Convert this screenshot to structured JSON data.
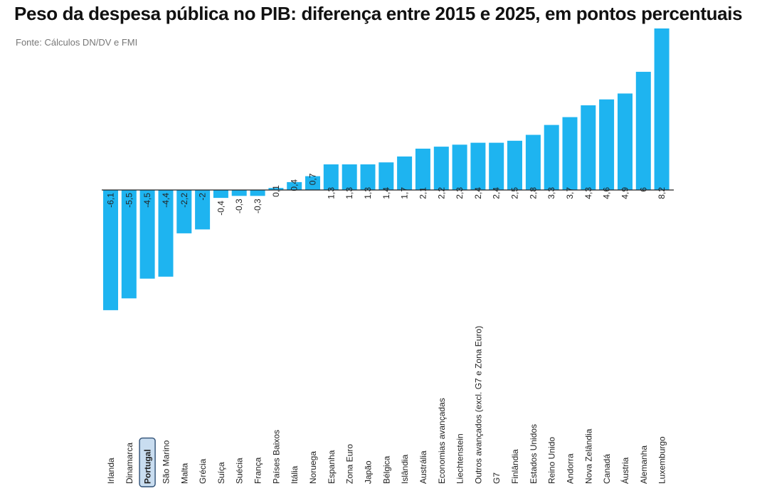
{
  "header": {
    "title": "Peso da despesa pública no PIB: diferença entre 2015 e 2025, em pontos percentuais",
    "source": "Fonte: Cálculos DN/DV e FMI"
  },
  "colors": {
    "bar": "#1EB4F0",
    "highlight_bg": "#C9DDF0",
    "highlight_border": "#2E4F75",
    "label_dark": "#222222",
    "baseline": "#222222"
  },
  "chart_data": {
    "type": "bar",
    "title": "Peso da despesa pública no PIB: diferença entre 2015 e 2025, em pontos percentuais",
    "xlabel": "",
    "ylabel": "",
    "ylim": [
      -6.1,
      8.2
    ],
    "grid": false,
    "legend": "none",
    "highlight": "Portugal",
    "categories": [
      "Irlanda",
      "Dinamarca",
      "Portugal",
      "São Marino",
      "Malta",
      "Grécia",
      "Suíça",
      "Suécia",
      "França",
      "Países Baixos",
      "Itália",
      "Noruega",
      "Espanha",
      "Zona Euro",
      "Japão",
      "Bélgica",
      "Islândia",
      "Austrália",
      "Economias avançadas",
      "Liechtenstein",
      "Outros avançados (excl. G7 e Zona Euro)",
      "G7",
      "Finlândia",
      "Estados Unidos",
      "Reino Unido",
      "Andorra",
      "Nova Zelândia",
      "Canadá",
      "Áustria",
      "Alemanha",
      "Luxemburgo"
    ],
    "values": [
      -6.1,
      -5.5,
      -4.5,
      -4.4,
      -2.2,
      -2,
      -0.4,
      -0.3,
      -0.3,
      0.1,
      0.4,
      0.7,
      1.3,
      1.3,
      1.3,
      1.4,
      1.7,
      2.1,
      2.2,
      2.3,
      2.4,
      2.4,
      2.5,
      2.8,
      3.3,
      3.7,
      4.3,
      4.6,
      4.9,
      6,
      8.2
    ],
    "value_labels": [
      "-6,1",
      "-5,5",
      "-4,5",
      "-4,4",
      "-2,2",
      "-2",
      "-0,4",
      "-0,3",
      "-0,3",
      "0,1",
      "0,4",
      "0,7",
      "1,3",
      "1,3",
      "1,3",
      "1,4",
      "1,7",
      "2,1",
      "2,2",
      "2,3",
      "2,4",
      "2,4",
      "2,5",
      "2,8",
      "3,3",
      "3,7",
      "4,3",
      "4,6",
      "4,9",
      "6",
      "8,2"
    ]
  }
}
